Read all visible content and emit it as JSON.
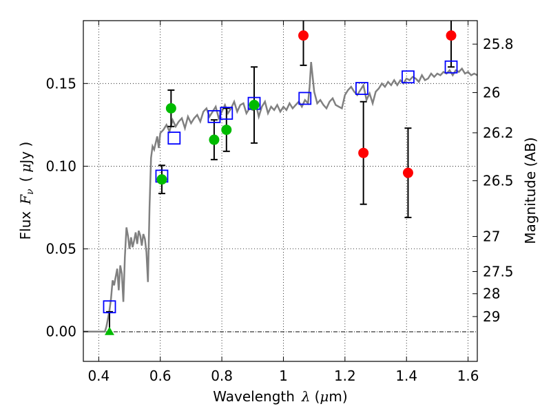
{
  "chart_data": {
    "type": "scatter",
    "xlabel_text": "Wavelength",
    "xlabel_symbol": "λ",
    "xlabel_unit_open": "(",
    "xlabel_unit_mu": "μ",
    "xlabel_unit_close": "m)",
    "ylabel_text": "Flux",
    "ylabel_symbol": "F",
    "ylabel_subscript": "ν",
    "ylabel_unit_open": "(",
    "ylabel_unit_mu": "μ",
    "ylabel_unit_close": "Jy )",
    "y2label": "Magnitude (AB)",
    "xlim": [
      0.35,
      1.63
    ],
    "ylim": [
      -0.018,
      0.188
    ],
    "grid": true,
    "x_ticks": [
      {
        "value": 0.4,
        "label": "0.4"
      },
      {
        "value": 0.6,
        "label": "0.6"
      },
      {
        "value": 0.8,
        "label": "0.8"
      },
      {
        "value": 1.0,
        "label": "1"
      },
      {
        "value": 1.2,
        "label": "1.2"
      },
      {
        "value": 1.4,
        "label": "1.4"
      },
      {
        "value": 1.6,
        "label": "1.6"
      }
    ],
    "y_ticks": [
      {
        "value": 0.0,
        "label": "0.00"
      },
      {
        "value": 0.05,
        "label": "0.05"
      },
      {
        "value": 0.1,
        "label": "0.10"
      },
      {
        "value": 0.15,
        "label": "0.15"
      }
    ],
    "y2_ticks": [
      {
        "flux": 0.1738,
        "label": "25.8"
      },
      {
        "flux": 0.1445,
        "label": "26"
      },
      {
        "flux": 0.1202,
        "label": "26.2"
      },
      {
        "flux": 0.0912,
        "label": "26.5"
      },
      {
        "flux": 0.0575,
        "label": "27"
      },
      {
        "flux": 0.0363,
        "label": "27.5"
      },
      {
        "flux": 0.0229,
        "label": "28"
      },
      {
        "flux": 0.0091,
        "label": "29"
      }
    ],
    "model_spectrum": {
      "color": "#808080",
      "x": [
        0.35,
        0.37,
        0.39,
        0.41,
        0.42,
        0.425,
        0.43,
        0.435,
        0.44,
        0.445,
        0.45,
        0.455,
        0.46,
        0.465,
        0.47,
        0.475,
        0.48,
        0.485,
        0.49,
        0.495,
        0.5,
        0.505,
        0.51,
        0.515,
        0.52,
        0.525,
        0.53,
        0.535,
        0.54,
        0.545,
        0.55,
        0.555,
        0.56,
        0.565,
        0.57,
        0.575,
        0.58,
        0.585,
        0.59,
        0.595,
        0.6,
        0.61,
        0.62,
        0.63,
        0.64,
        0.65,
        0.66,
        0.67,
        0.68,
        0.69,
        0.7,
        0.71,
        0.72,
        0.73,
        0.74,
        0.75,
        0.76,
        0.77,
        0.78,
        0.79,
        0.8,
        0.81,
        0.82,
        0.83,
        0.84,
        0.85,
        0.86,
        0.87,
        0.88,
        0.89,
        0.9,
        0.91,
        0.92,
        0.93,
        0.94,
        0.95,
        0.96,
        0.97,
        0.98,
        0.99,
        1.0,
        1.01,
        1.02,
        1.03,
        1.04,
        1.05,
        1.06,
        1.07,
        1.08,
        1.085,
        1.09,
        1.1,
        1.11,
        1.12,
        1.13,
        1.14,
        1.15,
        1.16,
        1.17,
        1.18,
        1.19,
        1.2,
        1.21,
        1.22,
        1.23,
        1.24,
        1.25,
        1.26,
        1.27,
        1.28,
        1.29,
        1.3,
        1.31,
        1.32,
        1.33,
        1.34,
        1.35,
        1.36,
        1.37,
        1.38,
        1.39,
        1.4,
        1.41,
        1.42,
        1.43,
        1.44,
        1.45,
        1.46,
        1.47,
        1.48,
        1.49,
        1.5,
        1.51,
        1.52,
        1.53,
        1.54,
        1.55,
        1.56,
        1.57,
        1.58,
        1.59,
        1.6,
        1.61,
        1.62,
        1.63
      ],
      "y": [
        0.0,
        0.0,
        0.0,
        0.0,
        0.0,
        0.003,
        0.008,
        0.013,
        0.02,
        0.031,
        0.028,
        0.033,
        0.038,
        0.025,
        0.04,
        0.035,
        0.018,
        0.045,
        0.063,
        0.058,
        0.05,
        0.057,
        0.051,
        0.055,
        0.06,
        0.053,
        0.061,
        0.058,
        0.052,
        0.059,
        0.056,
        0.048,
        0.03,
        0.075,
        0.105,
        0.112,
        0.11,
        0.114,
        0.118,
        0.111,
        0.12,
        0.122,
        0.125,
        0.121,
        0.128,
        0.124,
        0.127,
        0.129,
        0.123,
        0.13,
        0.126,
        0.129,
        0.131,
        0.127,
        0.133,
        0.135,
        0.13,
        0.133,
        0.136,
        0.129,
        0.133,
        0.137,
        0.132,
        0.135,
        0.139,
        0.133,
        0.137,
        0.138,
        0.132,
        0.135,
        0.134,
        0.138,
        0.13,
        0.136,
        0.139,
        0.132,
        0.136,
        0.134,
        0.137,
        0.133,
        0.136,
        0.134,
        0.138,
        0.135,
        0.137,
        0.139,
        0.136,
        0.14,
        0.138,
        0.148,
        0.163,
        0.145,
        0.138,
        0.14,
        0.137,
        0.135,
        0.139,
        0.141,
        0.137,
        0.136,
        0.135,
        0.143,
        0.146,
        0.148,
        0.145,
        0.143,
        0.146,
        0.149,
        0.14,
        0.144,
        0.138,
        0.145,
        0.147,
        0.15,
        0.148,
        0.151,
        0.149,
        0.152,
        0.149,
        0.152,
        0.15,
        0.153,
        0.152,
        0.154,
        0.153,
        0.151,
        0.155,
        0.152,
        0.153,
        0.156,
        0.154,
        0.156,
        0.155,
        0.157,
        0.156,
        0.158,
        0.155,
        0.158,
        0.157,
        0.159,
        0.156,
        0.157,
        0.155,
        0.156,
        0.155
      ]
    },
    "series_model_photometry": {
      "marker": "open-square",
      "color": "#0000ff",
      "x": [
        0.435,
        0.605,
        0.645,
        0.775,
        0.815,
        0.905,
        1.07,
        1.255,
        1.405,
        1.545
      ],
      "y": [
        0.015,
        0.094,
        0.117,
        0.13,
        0.132,
        0.138,
        0.141,
        0.147,
        0.154,
        0.16
      ]
    },
    "series_optical": {
      "marker": "filled-circle",
      "color": "#00bb00",
      "x": [
        0.605,
        0.635,
        0.775,
        0.815,
        0.905
      ],
      "y": [
        0.092,
        0.135,
        0.116,
        0.122,
        0.137
      ],
      "err_low": [
        0.0085,
        0.011,
        0.012,
        0.013,
        0.023
      ],
      "err_high": [
        0.0085,
        0.011,
        0.012,
        0.013,
        0.023
      ]
    },
    "series_nir": {
      "marker": "filled-circle",
      "color": "#ff0000",
      "x": [
        1.065,
        1.26,
        1.405,
        1.545
      ],
      "y": [
        0.179,
        0.108,
        0.096,
        0.179
      ],
      "err_low": [
        0.018,
        0.031,
        0.027,
        0.019
      ],
      "err_high": [
        0.018,
        0.031,
        0.027,
        0.019
      ]
    },
    "series_upper_limit": {
      "marker": "filled-triangle",
      "color": "#00bb00",
      "x": [
        0.435
      ],
      "y": [
        0.0
      ],
      "err_high": [
        0.012
      ]
    }
  }
}
